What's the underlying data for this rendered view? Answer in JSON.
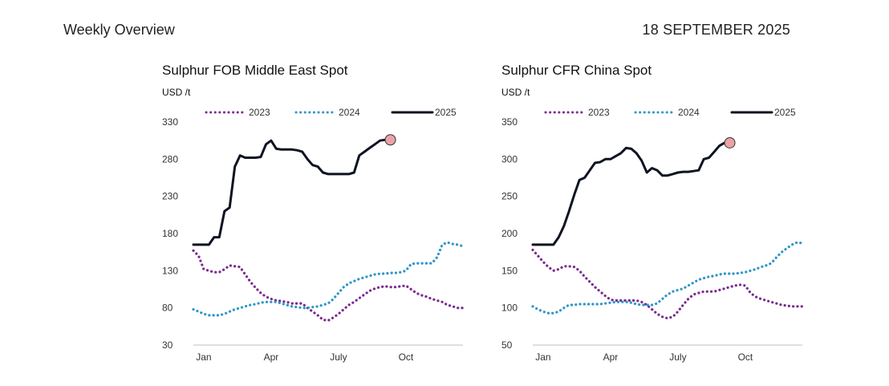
{
  "header": {
    "title": "Weekly Overview",
    "date": "18 SEPTEMBER 2025"
  },
  "colors": {
    "s2023": "#7b2a8f",
    "s2024": "#2f95c9",
    "s2025": "#0d1321",
    "marker": "#eaa3a6",
    "axis": "#bfbfbf"
  },
  "chart_data": [
    {
      "type": "line",
      "title": "Sulphur FOB Middle East Spot",
      "ylabel": "USD /t",
      "ylim": [
        30,
        330
      ],
      "yticks": [
        "330",
        "280",
        "230",
        "180",
        "130",
        "80",
        "30"
      ],
      "xlim": [
        0,
        52
      ],
      "xticks": [
        {
          "label": "Jan",
          "week": 2
        },
        {
          "label": "Apr",
          "week": 15
        },
        {
          "label": "July",
          "week": 28
        },
        {
          "label": "Oct",
          "week": 41
        }
      ],
      "legend": "top",
      "series": [
        {
          "name": "2023",
          "style": "dotted",
          "color": "#7b2a8f",
          "x": [
            0,
            1,
            2,
            3,
            4,
            5,
            6,
            7,
            8,
            9,
            10,
            11,
            12,
            13,
            14,
            15,
            16,
            17,
            18,
            19,
            20,
            21,
            22,
            23,
            24,
            25,
            26,
            27,
            28,
            29,
            30,
            31,
            32,
            33,
            34,
            35,
            36,
            37,
            38,
            39,
            40,
            41,
            42,
            43,
            44,
            45,
            46,
            47,
            48,
            49,
            50,
            51,
            52
          ],
          "y": [
            157,
            150,
            132,
            130,
            128,
            128,
            132,
            137,
            136,
            135,
            125,
            115,
            107,
            100,
            95,
            92,
            90,
            89,
            88,
            86,
            86,
            86,
            80,
            75,
            70,
            64,
            63,
            67,
            72,
            78,
            84,
            88,
            93,
            98,
            103,
            106,
            108,
            109,
            108,
            108,
            109,
            110,
            105,
            100,
            97,
            95,
            92,
            90,
            88,
            84,
            82,
            80,
            80
          ]
        },
        {
          "name": "2024",
          "style": "dotted",
          "color": "#2f95c9",
          "x": [
            0,
            1,
            2,
            3,
            4,
            5,
            6,
            7,
            8,
            9,
            10,
            11,
            12,
            13,
            14,
            15,
            16,
            17,
            18,
            19,
            20,
            21,
            22,
            23,
            24,
            25,
            26,
            27,
            28,
            29,
            30,
            31,
            32,
            33,
            34,
            35,
            36,
            37,
            38,
            39,
            40,
            41,
            42,
            43,
            44,
            45,
            46,
            47,
            48,
            49,
            50,
            51,
            52
          ],
          "y": [
            78,
            75,
            72,
            70,
            70,
            70,
            72,
            75,
            78,
            80,
            82,
            84,
            85,
            87,
            88,
            88,
            88,
            86,
            84,
            82,
            81,
            80,
            80,
            81,
            82,
            84,
            86,
            92,
            100,
            108,
            113,
            116,
            119,
            121,
            123,
            125,
            126,
            126,
            127,
            127,
            128,
            130,
            139,
            140,
            140,
            140,
            140,
            148,
            165,
            168,
            166,
            165,
            163
          ]
        },
        {
          "name": "2025",
          "style": "solid",
          "color": "#0d1321",
          "x": [
            0,
            1,
            2,
            3,
            4,
            5,
            6,
            7,
            8,
            9,
            10,
            11,
            12,
            13,
            14,
            15,
            16,
            17,
            18,
            19,
            20,
            21,
            22,
            23,
            24,
            25,
            26,
            27,
            28,
            29,
            30,
            31,
            32,
            33,
            34,
            35,
            36,
            37,
            38
          ],
          "y": [
            165,
            165,
            165,
            165,
            175,
            175,
            210,
            215,
            270,
            285,
            282,
            282,
            282,
            283,
            300,
            305,
            294,
            293,
            293,
            293,
            292,
            290,
            280,
            272,
            270,
            262,
            260,
            260,
            260,
            260,
            260,
            262,
            285,
            290,
            295,
            300,
            305,
            306,
            306
          ]
        }
      ],
      "last_marker": {
        "x": 38,
        "y": 306
      }
    },
    {
      "type": "line",
      "title": "Sulphur CFR China Spot",
      "ylabel": "USD /t",
      "ylim": [
        50,
        350
      ],
      "yticks": [
        "350",
        "300",
        "250",
        "200",
        "150",
        "100",
        "50"
      ],
      "xlim": [
        0,
        52
      ],
      "xticks": [
        {
          "label": "Jan",
          "week": 2
        },
        {
          "label": "Apr",
          "week": 15
        },
        {
          "label": "July",
          "week": 28
        },
        {
          "label": "Oct",
          "week": 41
        }
      ],
      "legend": "top",
      "series": [
        {
          "name": "2023",
          "style": "dotted",
          "color": "#7b2a8f",
          "x": [
            0,
            1,
            2,
            3,
            4,
            5,
            6,
            7,
            8,
            9,
            10,
            11,
            12,
            13,
            14,
            15,
            16,
            17,
            18,
            19,
            20,
            21,
            22,
            23,
            24,
            25,
            26,
            27,
            28,
            29,
            30,
            31,
            32,
            33,
            34,
            35,
            36,
            37,
            38,
            39,
            40,
            41,
            42,
            43,
            44,
            45,
            46,
            47,
            48,
            49,
            50,
            51,
            52
          ],
          "y": [
            178,
            170,
            162,
            155,
            150,
            152,
            156,
            156,
            155,
            150,
            142,
            135,
            128,
            122,
            116,
            111,
            110,
            110,
            110,
            110,
            110,
            108,
            104,
            98,
            92,
            88,
            86,
            88,
            95,
            104,
            112,
            118,
            120,
            122,
            122,
            122,
            124,
            126,
            128,
            130,
            131,
            130,
            120,
            115,
            112,
            110,
            108,
            106,
            104,
            103,
            102,
            102,
            102
          ]
        },
        {
          "name": "2024",
          "style": "dotted",
          "color": "#2f95c9",
          "x": [
            0,
            1,
            2,
            3,
            4,
            5,
            6,
            7,
            8,
            9,
            10,
            11,
            12,
            13,
            14,
            15,
            16,
            17,
            18,
            19,
            20,
            21,
            22,
            23,
            24,
            25,
            26,
            27,
            28,
            29,
            30,
            31,
            32,
            33,
            34,
            35,
            36,
            37,
            38,
            39,
            40,
            41,
            42,
            43,
            44,
            45,
            46,
            47,
            48,
            49,
            50,
            51,
            52
          ],
          "y": [
            102,
            98,
            95,
            93,
            93,
            95,
            100,
            104,
            104,
            105,
            105,
            105,
            105,
            105,
            106,
            107,
            108,
            108,
            108,
            107,
            105,
            104,
            104,
            104,
            106,
            112,
            118,
            122,
            124,
            126,
            130,
            134,
            138,
            140,
            142,
            143,
            145,
            146,
            146,
            146,
            147,
            148,
            150,
            152,
            155,
            157,
            160,
            168,
            175,
            180,
            185,
            188,
            187
          ]
        },
        {
          "name": "2025",
          "style": "solid",
          "color": "#0d1321",
          "x": [
            0,
            1,
            2,
            3,
            4,
            5,
            6,
            7,
            8,
            9,
            10,
            11,
            12,
            13,
            14,
            15,
            16,
            17,
            18,
            19,
            20,
            21,
            22,
            23,
            24,
            25,
            26,
            27,
            28,
            29,
            30,
            31,
            32,
            33,
            34,
            35,
            36,
            37,
            38
          ],
          "y": [
            185,
            185,
            185,
            185,
            185,
            195,
            210,
            230,
            252,
            272,
            275,
            285,
            295,
            296,
            300,
            300,
            304,
            308,
            315,
            314,
            308,
            298,
            282,
            288,
            285,
            278,
            278,
            280,
            282,
            283,
            283,
            284,
            285,
            300,
            302,
            310,
            318,
            322,
            322
          ]
        }
      ],
      "last_marker": {
        "x": 38,
        "y": 322
      }
    }
  ]
}
